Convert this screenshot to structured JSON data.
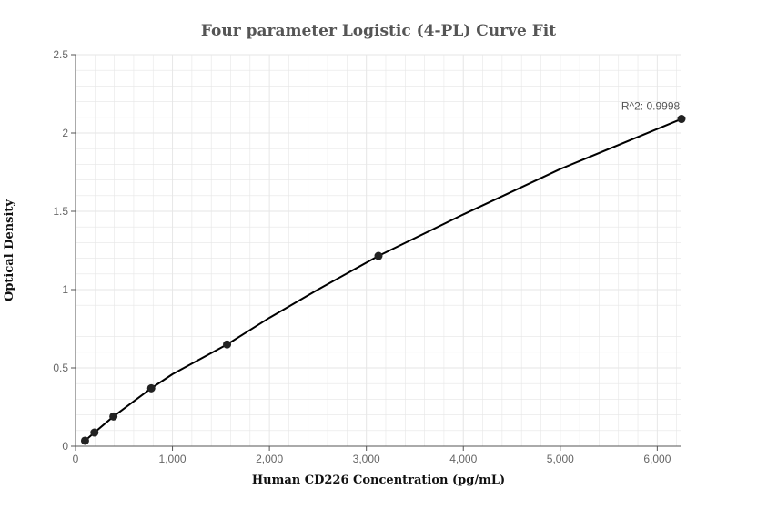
{
  "chart_data": {
    "type": "scatter",
    "title": "Four parameter Logistic (4-PL) Curve Fit",
    "xlabel": "Human CD226 Concentration (pg/mL)",
    "ylabel": "Optical Density",
    "xlim": [
      0,
      6250
    ],
    "ylim": [
      0,
      2.5
    ],
    "x_ticks": [
      0,
      1000,
      2000,
      3000,
      4000,
      5000,
      6000
    ],
    "x_tick_labels": [
      "0",
      "1,000",
      "2,000",
      "3,000",
      "4,000",
      "5,000",
      "6,000"
    ],
    "y_ticks": [
      0,
      0.5,
      1,
      1.5,
      2,
      2.5
    ],
    "y_tick_labels": [
      "0",
      "0.5",
      "1",
      "1.5",
      "2",
      "2.5"
    ],
    "grid": true,
    "series": [
      {
        "x": [
          98,
          195,
          391,
          781,
          1563,
          3125,
          6250
        ],
        "y": [
          0.035,
          0.087,
          0.19,
          0.37,
          0.65,
          1.215,
          2.09
        ]
      }
    ],
    "fit_curve": {
      "x": [
        98,
        195,
        391,
        781,
        1000,
        1563,
        2000,
        2500,
        3125,
        4000,
        5000,
        6250
      ],
      "y": [
        0.035,
        0.087,
        0.19,
        0.37,
        0.46,
        0.65,
        0.82,
        1.0,
        1.215,
        1.48,
        1.77,
        2.09
      ]
    },
    "annotations": [
      {
        "text": "R^2: 0.9998",
        "x": 6250,
        "y": 2.09
      }
    ],
    "colors": {
      "points": "#222222",
      "curve": "#000000",
      "grid": "#e6e6e6",
      "axis": "#555555"
    }
  }
}
